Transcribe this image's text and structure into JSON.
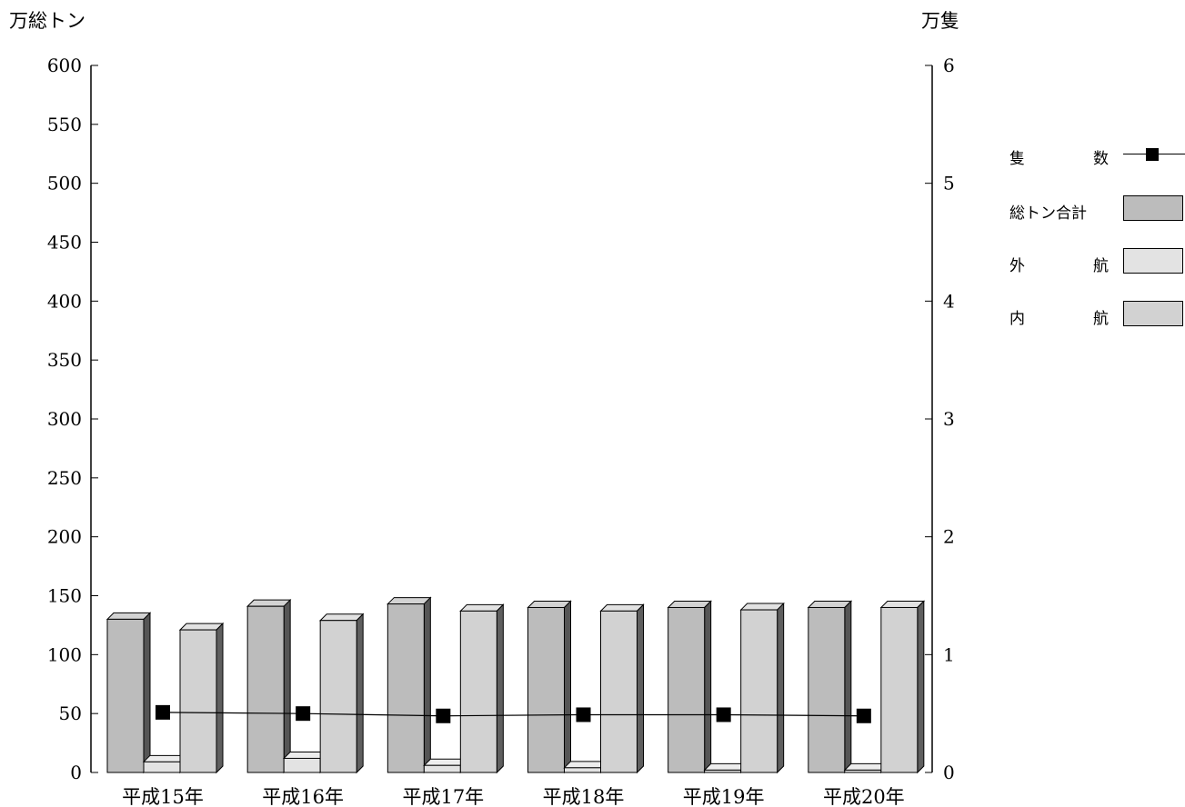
{
  "chart_data": {
    "type": "bar",
    "y_left_label": "万総トン",
    "y_right_label": "万隻",
    "categories": [
      "平成15年",
      "平成16年",
      "平成17年",
      "平成18年",
      "平成19年",
      "平成20年"
    ],
    "ylim_left": [
      0,
      600
    ],
    "ylim_right": [
      0,
      6
    ],
    "yticks_left": [
      "0",
      "50",
      "100",
      "150",
      "200",
      "250",
      "300",
      "350",
      "400",
      "450",
      "500",
      "550",
      "600"
    ],
    "yticks_right": [
      "0",
      "1",
      "2",
      "3",
      "4",
      "5",
      "6"
    ],
    "grid": false,
    "legend_position": "right",
    "series": [
      {
        "name": "総トン合計",
        "axis": "left",
        "kind": "bar",
        "color": "#bcbcbc",
        "values": [
          130,
          141,
          143,
          140,
          140,
          140
        ]
      },
      {
        "name": "外　　航",
        "axis": "left",
        "kind": "bar",
        "color": "#e3e3e3",
        "values": [
          9,
          12,
          6,
          4,
          2,
          2
        ]
      },
      {
        "name": "内　　航",
        "axis": "left",
        "kind": "bar",
        "color": "#d2d2d2",
        "values": [
          121,
          129,
          137,
          137,
          138,
          140
        ]
      },
      {
        "name": "隻　　数",
        "axis": "right",
        "kind": "line",
        "color": "#000000",
        "values": [
          0.51,
          0.5,
          0.48,
          0.49,
          0.49,
          0.48
        ]
      }
    ]
  },
  "legend": [
    {
      "left": "隻",
      "right": "数",
      "type": "marker"
    },
    {
      "full": "総トン合計",
      "type": "swatch",
      "color": "#bcbcbc"
    },
    {
      "left": "外",
      "right": "航",
      "type": "swatch",
      "color": "#e3e3e3"
    },
    {
      "left": "内",
      "right": "航",
      "type": "swatch",
      "color": "#d2d2d2"
    }
  ]
}
